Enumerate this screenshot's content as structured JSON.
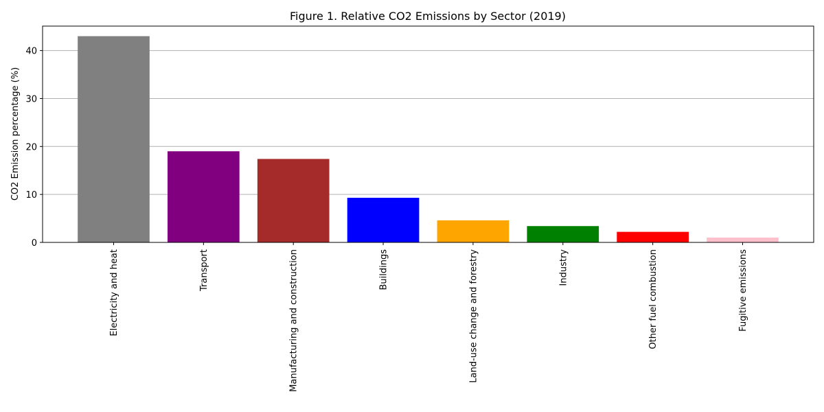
{
  "chart_data": {
    "type": "bar",
    "title": "Figure 1. Relative CO2 Emissions by Sector (2019)",
    "xlabel": "",
    "ylabel": "CO2 Emission percentage (%)",
    "categories": [
      "Electricity and heat",
      "Transport",
      "Manufacturing and construction",
      "Buildings",
      "Land-use change and forestry",
      "Industry",
      "Other fuel combustion",
      "Fugitive emissions"
    ],
    "values": [
      43,
      19,
      17.4,
      9.3,
      4.6,
      3.4,
      2.2,
      1.0
    ],
    "colors": [
      "#808080",
      "#800080",
      "#a52a2a",
      "#0000ff",
      "#ffa500",
      "#008000",
      "#ff0000",
      "#ffc0cb"
    ],
    "ylim": [
      0,
      45.1
    ],
    "yticks": [
      0,
      10,
      20,
      30,
      40
    ],
    "grid": "horizontal",
    "legend": "none"
  }
}
